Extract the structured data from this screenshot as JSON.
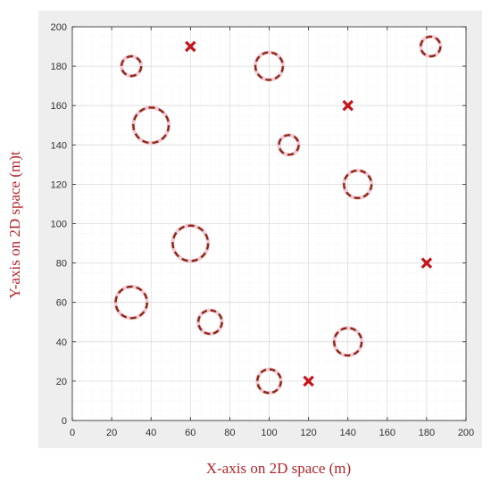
{
  "chart_data": {
    "type": "scatter",
    "title": "",
    "xlabel": "X-axis on 2D space (m)",
    "ylabel": "Y-axis on 2D space (m)t",
    "xlim": [
      0,
      200
    ],
    "ylim": [
      0,
      200
    ],
    "x_ticks": [
      0,
      20,
      40,
      60,
      80,
      100,
      120,
      140,
      160,
      180,
      200
    ],
    "y_ticks": [
      0,
      20,
      40,
      60,
      80,
      100,
      120,
      140,
      160,
      180,
      200
    ],
    "grid": "major and minor",
    "series": [
      {
        "marker": "dashed-circle",
        "points": [
          {
            "x": 30,
            "y": 180,
            "r": 5
          },
          {
            "x": 100,
            "y": 180,
            "r": 7
          },
          {
            "x": 182,
            "y": 190,
            "r": 5
          },
          {
            "x": 40,
            "y": 150,
            "r": 9
          },
          {
            "x": 110,
            "y": 140,
            "r": 5
          },
          {
            "x": 145,
            "y": 120,
            "r": 7
          },
          {
            "x": 60,
            "y": 90,
            "r": 9
          },
          {
            "x": 30,
            "y": 60,
            "r": 8
          },
          {
            "x": 70,
            "y": 50,
            "r": 6
          },
          {
            "x": 140,
            "y": 40,
            "r": 7
          },
          {
            "x": 100,
            "y": 20,
            "r": 6
          }
        ]
      },
      {
        "marker": "x",
        "points": [
          {
            "x": 60,
            "y": 190
          },
          {
            "x": 140,
            "y": 160
          },
          {
            "x": 180,
            "y": 80
          },
          {
            "x": 120,
            "y": 20
          }
        ]
      }
    ],
    "colors": {
      "circle_stroke": "#8b2a14",
      "circle_halo": "#f3c8d6",
      "cross_fill": "#c4161c",
      "figure_background": "#eeeeee",
      "axes_background": "#ffffff",
      "major_grid": "#dcdcdc",
      "minor_grid": "#efefef",
      "axis_line": "#262626",
      "label_text": "#b3262b"
    }
  }
}
